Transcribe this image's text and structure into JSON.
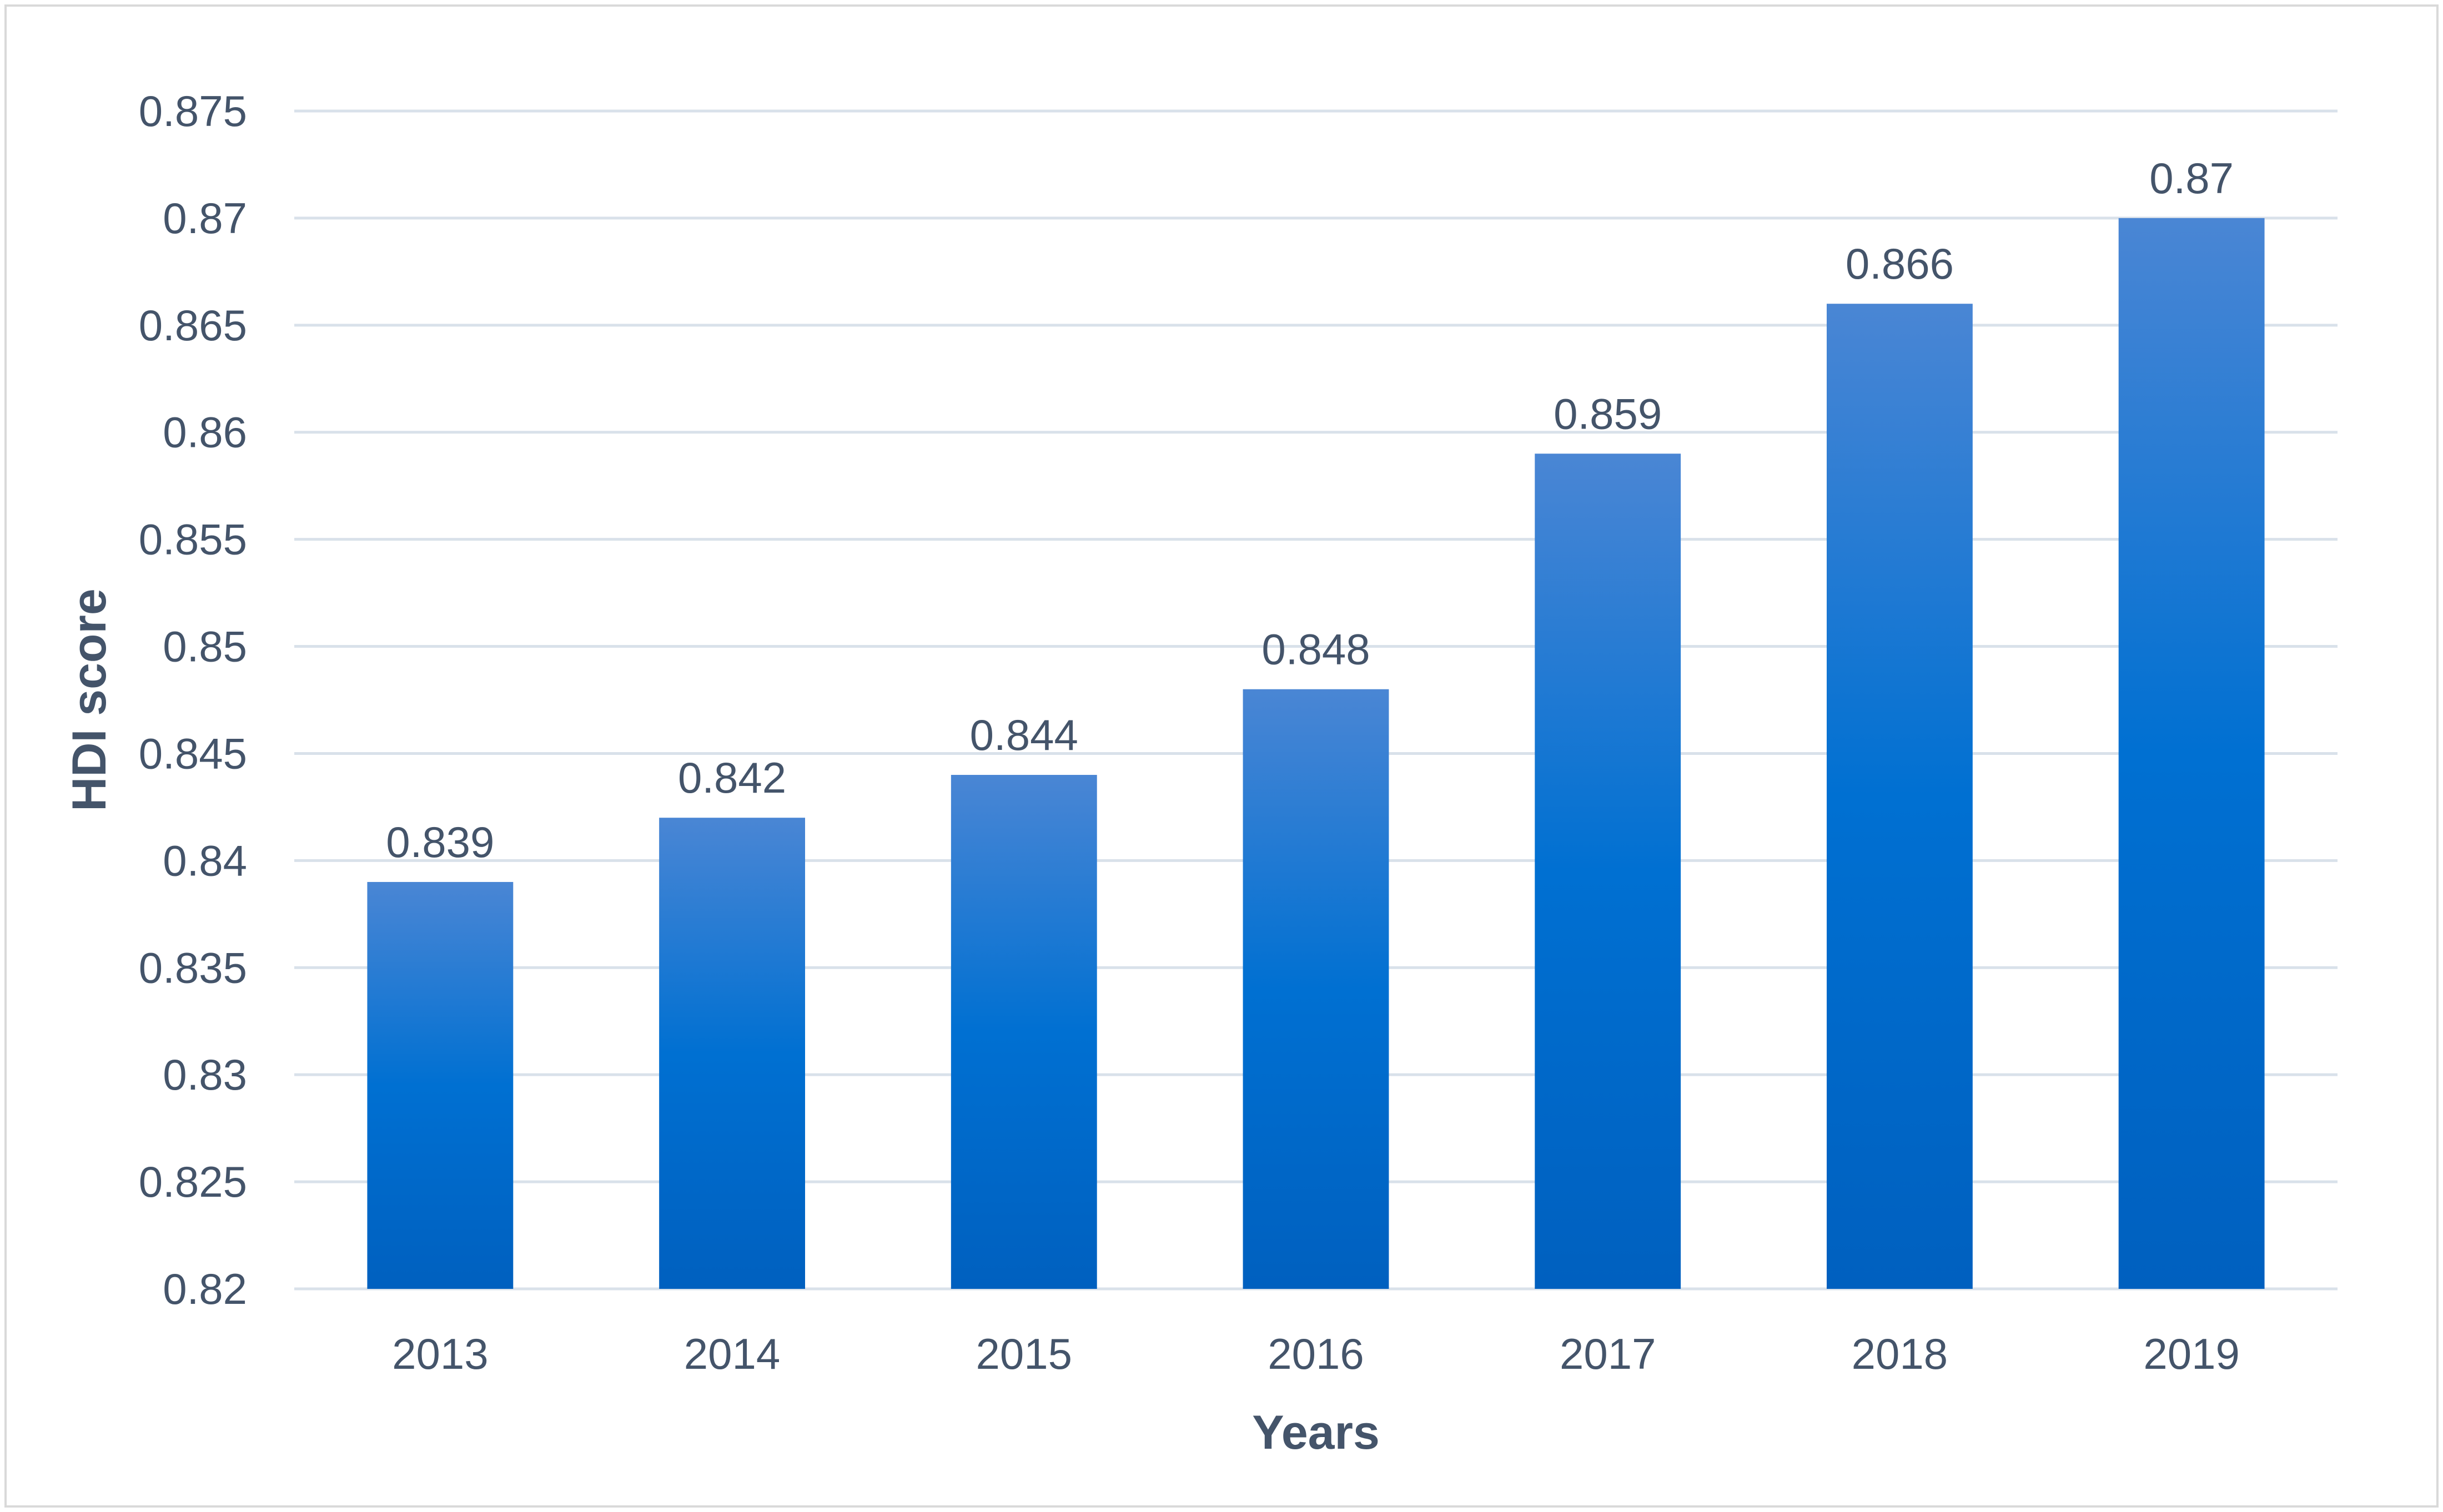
{
  "chart_data": {
    "type": "bar",
    "title": "",
    "xlabel": "Years",
    "ylabel": "HDI score",
    "categories": [
      "2013",
      "2014",
      "2015",
      "2016",
      "2017",
      "2018",
      "2019"
    ],
    "values": [
      0.839,
      0.842,
      0.844,
      0.848,
      0.859,
      0.866,
      0.87
    ],
    "data_labels": [
      "0.839",
      "0.842",
      "0.844",
      "0.848",
      "0.859",
      "0.866",
      "0.87"
    ],
    "ylim": [
      0.82,
      0.875
    ],
    "yticks": [
      0.82,
      0.825,
      0.83,
      0.835,
      0.84,
      0.845,
      0.85,
      0.855,
      0.86,
      0.865,
      0.87,
      0.875
    ],
    "ytick_labels": [
      "0.82",
      "0.825",
      "0.83",
      "0.835",
      "0.84",
      "0.845",
      "0.85",
      "0.855",
      "0.86",
      "0.865",
      "0.87",
      "0.875"
    ],
    "grid": true,
    "legend": "none",
    "colors": {
      "bar_top": "#4a86d4",
      "bar_mid": "#0070d2",
      "bar_bottom": "#0060bf",
      "text": "#44546a",
      "grid": "#d9e1ea",
      "frame": "#d9d9d9"
    }
  }
}
